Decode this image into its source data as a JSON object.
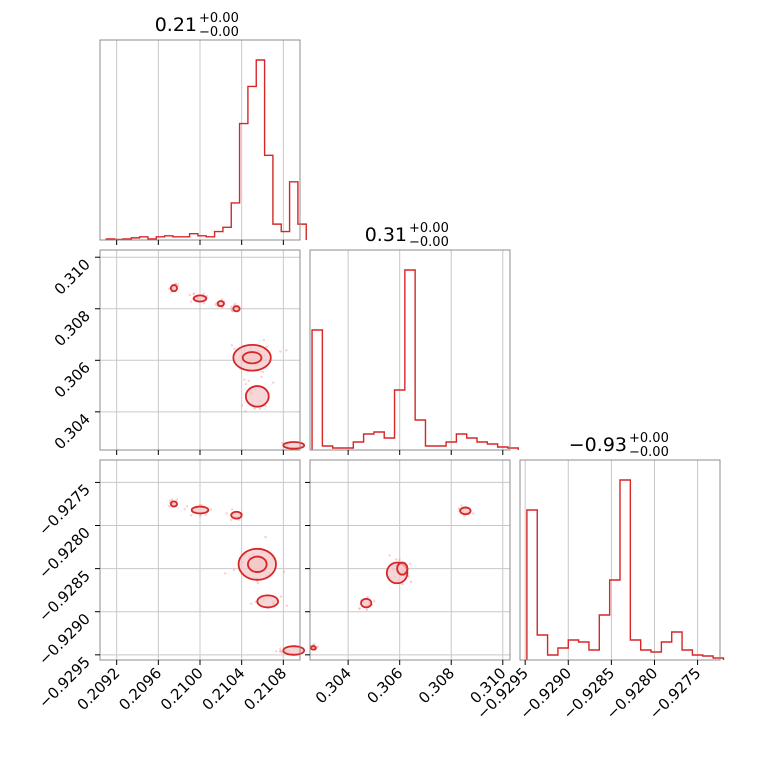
{
  "style": {
    "accent_color": "#d62728",
    "fill_color": "#f4c4c6",
    "scatter_color": "#f3a8ab"
  },
  "chart_data": [
    {
      "type": "histogram",
      "panel": "diag-0",
      "title": "0.21",
      "title_upper": "+0.00",
      "title_lower": "−0.00",
      "x_range": [
        0.20904,
        0.21096
      ],
      "x_ticks": [
        0.2092,
        0.2096,
        0.21,
        0.2104,
        0.2108
      ],
      "x_tick_labels": [
        "0.2092",
        "0.2096",
        "0.2100",
        "0.2104",
        "0.2108"
      ],
      "bins_x": [
        0.2091,
        0.20918,
        0.20926,
        0.20934,
        0.20942,
        0.2095,
        0.20958,
        0.20966,
        0.20974,
        0.20982,
        0.2099,
        0.20998,
        0.21006,
        0.21014,
        0.21022,
        0.2103,
        0.21038,
        0.21046,
        0.21054,
        0.21062,
        0.2107,
        0.21078,
        0.21086,
        0.21094
      ],
      "counts": [
        1,
        0.5,
        1,
        2,
        3,
        1,
        3,
        4,
        3,
        3,
        6,
        4,
        3,
        8,
        12,
        35,
        110,
        145,
        170,
        80,
        15,
        8,
        55,
        15
      ]
    },
    {
      "type": "scatter-contour",
      "panel": "x0-y1",
      "x_range": [
        0.20904,
        0.21096
      ],
      "y_range": [
        0.30252,
        0.31028
      ],
      "y_ticks": [
        0.304,
        0.306,
        0.308,
        0.31
      ],
      "y_tick_labels": [
        "0.304",
        "0.306",
        "0.308",
        "0.310"
      ],
      "contours": [
        {
          "cx": 0.20975,
          "cy": 0.3088,
          "rx": 3e-05,
          "ry": 0.00012
        },
        {
          "cx": 0.21,
          "cy": 0.3084,
          "rx": 6e-05,
          "ry": 0.00012
        },
        {
          "cx": 0.2102,
          "cy": 0.3082,
          "rx": 3e-05,
          "ry": 0.0001
        },
        {
          "cx": 0.21035,
          "cy": 0.308,
          "rx": 3e-05,
          "ry": 0.0001
        },
        {
          "cx": 0.2105,
          "cy": 0.3061,
          "rx": 0.00018,
          "ry": 0.0005
        },
        {
          "cx": 0.2105,
          "cy": 0.3061,
          "rx": 9e-05,
          "ry": 0.00022
        },
        {
          "cx": 0.21055,
          "cy": 0.3046,
          "rx": 0.00011,
          "ry": 0.0004
        },
        {
          "cx": 0.2109,
          "cy": 0.3027,
          "rx": 0.0001,
          "ry": 0.00013
        }
      ]
    },
    {
      "type": "scatter-contour",
      "panel": "x0-y2",
      "x_range": [
        0.20904,
        0.21096
      ],
      "y_range": [
        -0.92956,
        -0.92724
      ],
      "x_ticks": [
        0.2092,
        0.2096,
        0.21,
        0.2104,
        0.2108
      ],
      "x_tick_labels": [
        "0.2092",
        "0.2096",
        "0.2100",
        "0.2104",
        "0.2108"
      ],
      "y_ticks": [
        -0.9295,
        -0.929,
        -0.9285,
        -0.928,
        -0.9275
      ],
      "y_tick_labels": [
        "−0.9295",
        "−0.9290",
        "−0.9285",
        "−0.9280",
        "−0.9275"
      ],
      "contours": [
        {
          "cx": 0.20975,
          "cy": -0.92775,
          "rx": 3e-05,
          "ry": 3e-05
        },
        {
          "cx": 0.21,
          "cy": -0.92782,
          "rx": 8e-05,
          "ry": 4e-05
        },
        {
          "cx": 0.21035,
          "cy": -0.92788,
          "rx": 5e-05,
          "ry": 4e-05
        },
        {
          "cx": 0.21055,
          "cy": -0.92845,
          "rx": 0.00018,
          "ry": 0.00018
        },
        {
          "cx": 0.21055,
          "cy": -0.92845,
          "rx": 9e-05,
          "ry": 9e-05
        },
        {
          "cx": 0.21065,
          "cy": -0.92888,
          "rx": 0.0001,
          "ry": 7e-05
        },
        {
          "cx": 0.2109,
          "cy": -0.92945,
          "rx": 0.0001,
          "ry": 5e-05
        }
      ]
    },
    {
      "type": "histogram",
      "panel": "diag-1",
      "title": "0.31",
      "title_upper": "+0.00",
      "title_lower": "−0.00",
      "x_range": [
        0.30252,
        0.31028
      ],
      "bins_x": [
        0.3026,
        0.303,
        0.3034,
        0.3038,
        0.3042,
        0.3046,
        0.305,
        0.3054,
        0.3058,
        0.3062,
        0.3066,
        0.307,
        0.3074,
        0.3078,
        0.3082,
        0.3086,
        0.309,
        0.3094,
        0.3098,
        0.3102
      ],
      "counts": [
        120,
        4,
        2,
        2,
        8,
        16,
        18,
        12,
        60,
        180,
        30,
        4,
        4,
        8,
        16,
        12,
        8,
        6,
        3,
        2
      ]
    },
    {
      "type": "scatter-contour",
      "panel": "x1-y2",
      "x_range": [
        0.30252,
        0.31028
      ],
      "y_range": [
        -0.92956,
        -0.92724
      ],
      "x_ticks": [
        0.304,
        0.306,
        0.308,
        0.31
      ],
      "x_tick_labels": [
        "0.304",
        "0.306",
        "0.308",
        "0.310"
      ],
      "contours": [
        {
          "cx": 0.30265,
          "cy": -0.92942,
          "rx": 0.0001,
          "ry": 2e-05
        },
        {
          "cx": 0.3047,
          "cy": -0.9289,
          "rx": 0.0002,
          "ry": 5e-05
        },
        {
          "cx": 0.3059,
          "cy": -0.92855,
          "rx": 0.0004,
          "ry": 0.00012
        },
        {
          "cx": 0.3061,
          "cy": -0.9285,
          "rx": 0.0002,
          "ry": 7e-05
        },
        {
          "cx": 0.30855,
          "cy": -0.92783,
          "rx": 0.0002,
          "ry": 4e-05
        }
      ]
    },
    {
      "type": "histogram",
      "panel": "diag-2",
      "title": "−0.93",
      "title_upper": "+0.00",
      "title_lower": "−0.00",
      "x_range": [
        -0.92956,
        -0.92724
      ],
      "x_ticks": [
        -0.9295,
        -0.929,
        -0.9285,
        -0.928,
        -0.9275
      ],
      "x_tick_labels": [
        "−0.9295",
        "−0.9290",
        "−0.9285",
        "−0.9280",
        "−0.9275"
      ],
      "bins_x": [
        -0.92948,
        -0.92936,
        -0.92924,
        -0.92912,
        -0.929,
        -0.92888,
        -0.92876,
        -0.92864,
        -0.92852,
        -0.9284,
        -0.92828,
        -0.92816,
        -0.92804,
        -0.92792,
        -0.9278,
        -0.92768,
        -0.92756,
        -0.92744,
        -0.92732
      ],
      "counts": [
        150,
        25,
        5,
        12,
        20,
        18,
        10,
        45,
        80,
        180,
        20,
        10,
        8,
        18,
        28,
        10,
        5,
        4,
        2
      ]
    }
  ]
}
